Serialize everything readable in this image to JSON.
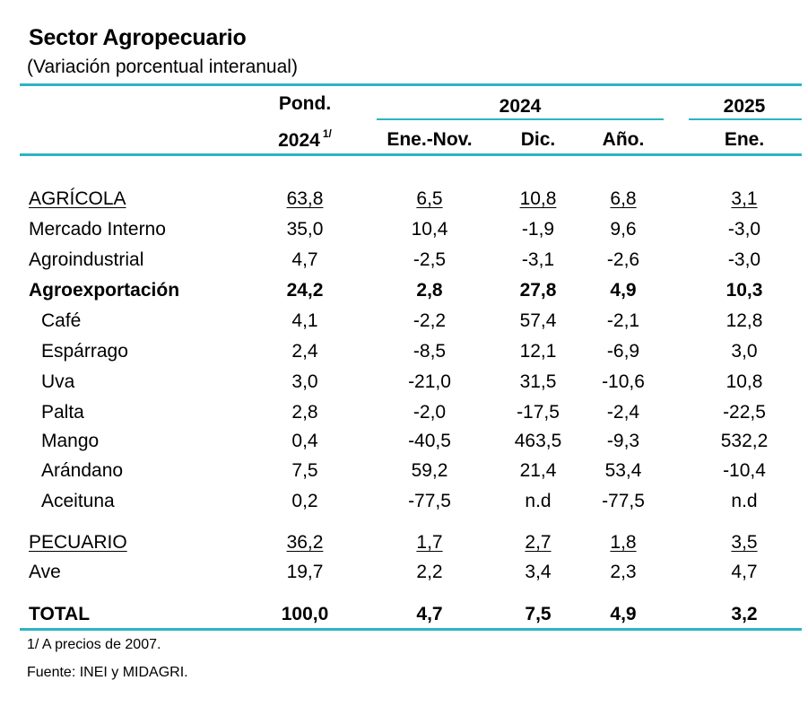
{
  "title": "Sector Agropecuario",
  "subtitle": "(Variación porcentual interanual)",
  "header": {
    "pond": "Pond.",
    "pond_year": "2024",
    "pond_sup": "1/",
    "year_2024": "2024",
    "year_2025": "2025",
    "col_enenov": "Ene.-Nov.",
    "col_dic": "Dic.",
    "col_ano": "Año.",
    "col_ene": "Ene."
  },
  "rows": [
    {
      "label": "AGRÍCOLA",
      "pond": "63,8",
      "enenov": "6,5",
      "dic": "10,8",
      "ano": "6,8",
      "ene": "3,1"
    },
    {
      "label": "Mercado Interno",
      "pond": "35,0",
      "enenov": "10,4",
      "dic": "-1,9",
      "ano": "9,6",
      "ene": "-3,0"
    },
    {
      "label": "Agroindustrial",
      "pond": "4,7",
      "enenov": "-2,5",
      "dic": "-3,1",
      "ano": "-2,6",
      "ene": "-3,0"
    },
    {
      "label": "Agroexportación",
      "pond": "24,2",
      "enenov": "2,8",
      "dic": "27,8",
      "ano": "4,9",
      "ene": "10,3"
    },
    {
      "label": "Café",
      "pond": "4,1",
      "enenov": "-2,2",
      "dic": "57,4",
      "ano": "-2,1",
      "ene": "12,8"
    },
    {
      "label": "Espárrago",
      "pond": "2,4",
      "enenov": "-8,5",
      "dic": "12,1",
      "ano": "-6,9",
      "ene": "3,0"
    },
    {
      "label": "Uva",
      "pond": "3,0",
      "enenov": "-21,0",
      "dic": "31,5",
      "ano": "-10,6",
      "ene": "10,8"
    },
    {
      "label": "Palta",
      "pond": "2,8",
      "enenov": "-2,0",
      "dic": "-17,5",
      "ano": "-2,4",
      "ene": "-22,5"
    },
    {
      "label": "Mango",
      "pond": "0,4",
      "enenov": "-40,5",
      "dic": "463,5",
      "ano": "-9,3",
      "ene": "532,2"
    },
    {
      "label": "Arándano",
      "pond": "7,5",
      "enenov": "59,2",
      "dic": "21,4",
      "ano": "53,4",
      "ene": "-10,4"
    },
    {
      "label": "Aceituna",
      "pond": "0,2",
      "enenov": "-77,5",
      "dic": "n.d",
      "ano": "-77,5",
      "ene": "n.d"
    },
    {
      "label": "PECUARIO",
      "pond": "36,2",
      "enenov": "1,7",
      "dic": "2,7",
      "ano": "1,8",
      "ene": "3,5"
    },
    {
      "label": "Ave",
      "pond": "19,7",
      "enenov": "2,2",
      "dic": "3,4",
      "ano": "2,3",
      "ene": "4,7"
    },
    {
      "label": "TOTAL",
      "pond": "100,0",
      "enenov": "4,7",
      "dic": "7,5",
      "ano": "4,9",
      "ene": "3,2"
    }
  ],
  "footnotes": {
    "note1": "1/ A precios de 2007.",
    "source": "Fuente: INEI y MIDAGRI."
  },
  "colors": {
    "accent_rule": "#2bb5c4"
  }
}
